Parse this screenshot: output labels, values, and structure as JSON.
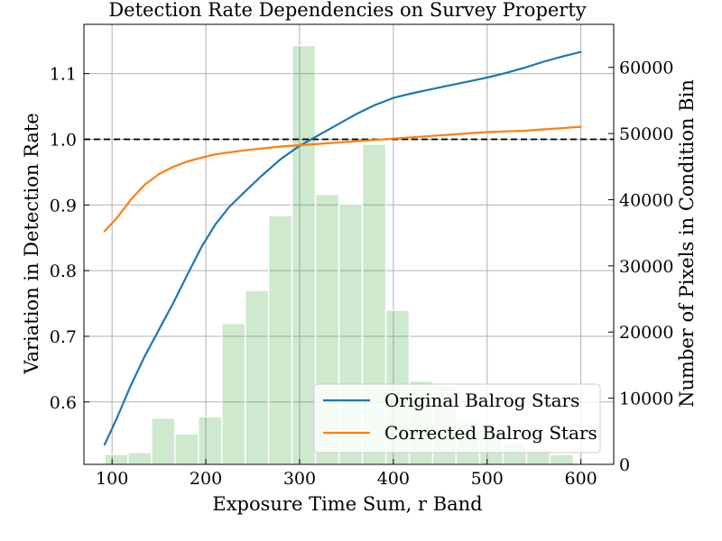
{
  "chart_data": {
    "type": "bar",
    "title": "Detection Rate Dependencies on Survey Property",
    "xlabel": "Exposure Time Sum, r Band",
    "ylabel": "Variation in Detection Rate",
    "y2label": "Number of Pixels in Condition Bin",
    "xlim": [
      70,
      635
    ],
    "ylim": [
      0.505,
      1.175
    ],
    "y2lim": [
      0,
      66500
    ],
    "grid": true,
    "xticks": [
      100,
      200,
      300,
      400,
      500,
      600
    ],
    "xtick_labels": [
      "100",
      "200",
      "300",
      "400",
      "500",
      "600"
    ],
    "yticks": [
      0.6,
      0.7,
      0.8,
      0.9,
      1.0,
      1.1
    ],
    "ytick_labels": [
      "0.6",
      "0.7",
      "0.8",
      "0.9",
      "1.0",
      "1.1"
    ],
    "y2ticks": [
      0,
      10000,
      20000,
      30000,
      40000,
      50000,
      60000
    ],
    "y2tick_labels": [
      "0",
      "10000",
      "20000",
      "30000",
      "40000",
      "50000",
      "60000"
    ],
    "reference_line": {
      "y": 1.0,
      "style": "dashed",
      "color": "#000000"
    },
    "histogram": {
      "color": "#2ca02c",
      "opacity": 0.23,
      "bin_edges": [
        92,
        117,
        142,
        167,
        192,
        217,
        242,
        267,
        292,
        317,
        342,
        367,
        392,
        417,
        442,
        467,
        492,
        517,
        542,
        567,
        592,
        617
      ],
      "counts": [
        1500,
        1800,
        7000,
        4600,
        7200,
        21300,
        26300,
        37600,
        63300,
        40800,
        39300,
        48400,
        23300,
        12600,
        11900,
        6700,
        5200,
        3100,
        2300,
        1500,
        0
      ]
    },
    "series": [
      {
        "name": "Original Balrog Stars",
        "color": "#1f77b4",
        "x": [
          92,
          105,
          120,
          135,
          150,
          165,
          180,
          195,
          210,
          225,
          240,
          260,
          280,
          300,
          320,
          340,
          360,
          380,
          400,
          420,
          440,
          460,
          480,
          500,
          520,
          540,
          560,
          580,
          600
        ],
        "y": [
          0.535,
          0.575,
          0.625,
          0.67,
          0.71,
          0.75,
          0.793,
          0.835,
          0.87,
          0.897,
          0.918,
          0.945,
          0.97,
          0.99,
          1.006,
          1.022,
          1.038,
          1.052,
          1.063,
          1.07,
          1.076,
          1.082,
          1.088,
          1.094,
          1.101,
          1.109,
          1.118,
          1.126,
          1.133
        ]
      },
      {
        "name": "Corrected Balrog Stars",
        "color": "#ff7f0e",
        "x": [
          92,
          105,
          120,
          135,
          150,
          165,
          180,
          195,
          210,
          225,
          240,
          260,
          280,
          300,
          320,
          340,
          360,
          380,
          400,
          420,
          440,
          460,
          480,
          500,
          520,
          540,
          560,
          580,
          600
        ],
        "y": [
          0.86,
          0.88,
          0.908,
          0.931,
          0.947,
          0.958,
          0.966,
          0.972,
          0.977,
          0.98,
          0.983,
          0.986,
          0.989,
          0.991,
          0.993,
          0.995,
          0.997,
          0.999,
          1.001,
          1.003,
          1.005,
          1.007,
          1.009,
          1.011,
          1.012,
          1.013,
          1.015,
          1.017,
          1.019
        ]
      }
    ],
    "legend": {
      "placement": "lower-right"
    }
  }
}
